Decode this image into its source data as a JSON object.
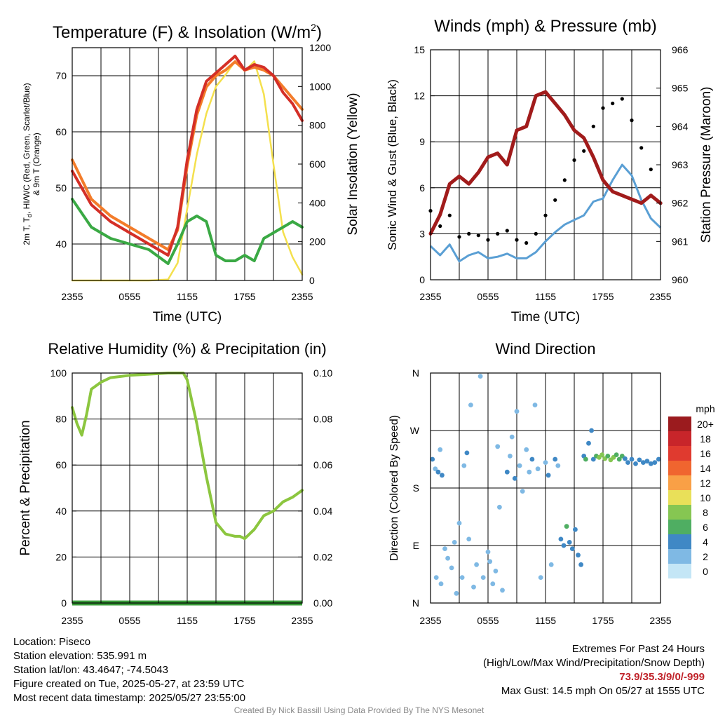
{
  "x_ticks": [
    "2355",
    "0555",
    "1155",
    "1755",
    "2355"
  ],
  "panels": {
    "temp": {
      "title_main": "Temperature (F) & Insolation (W/m",
      "title_sup": "2",
      "title_end": ")",
      "xlabel": "Time (UTC)",
      "ylabel_left_1a": "2m T, T",
      "ylabel_left_1sub": "d",
      "ylabel_left_1b": ", HI/WC (Red, Green, Scarlet/Blue)",
      "ylabel_left_2": "& 9m T (Orange)",
      "ylabel_right": "Solar Insolation (Yellow)",
      "y_left_ticks": [
        "40",
        "50",
        "60",
        "70"
      ],
      "y_right_ticks": [
        "0",
        "200",
        "400",
        "600",
        "800",
        "1000",
        "1200"
      ]
    },
    "wind": {
      "title": "Winds (mph) & Pressure (mb)",
      "xlabel": "Time (UTC)",
      "ylabel_left": "Sonic Wind & Gust (Blue, Black)",
      "ylabel_right": "Station Pressure (Maroon)",
      "y_left_ticks": [
        "0",
        "3",
        "6",
        "9",
        "12",
        "15"
      ],
      "y_right_ticks": [
        "960",
        "961",
        "962",
        "963",
        "964",
        "965",
        "966"
      ]
    },
    "rh": {
      "title": "Relative Humidity (%) & Precipitation (in)",
      "ylabel_left": "Percent & Precipitation",
      "y_left_ticks": [
        "0",
        "20",
        "40",
        "60",
        "80",
        "100"
      ],
      "y_right_ticks": [
        "0.00",
        "0.02",
        "0.04",
        "0.06",
        "0.08",
        "0.10"
      ]
    },
    "wdir": {
      "title": "Wind Direction",
      "ylabel_left": "Direction (Colored By Speed)",
      "y_ticks": [
        "N",
        "E",
        "S",
        "W",
        "N"
      ],
      "colorbar_unit": "mph",
      "colorbar_labels": [
        "20+",
        "18",
        "16",
        "14",
        "12",
        "10",
        "8",
        "6",
        "4",
        "2",
        "0"
      ]
    }
  },
  "colorbar_colors": [
    "#9b1b1e",
    "#c8252a",
    "#e03a2f",
    "#f0652f",
    "#f9a046",
    "#e9e059",
    "#86c652",
    "#4fae62",
    "#3f88c5",
    "#7fb9e4",
    "#c4e6f6"
  ],
  "info": {
    "location": "Location: Piseco",
    "elevation": "Station elevation: 535.991 m",
    "latlon": "Station lat/lon: 43.4647; -74.5043",
    "created": "Figure created on Tue, 2025-05-27, at 23:59 UTC",
    "recent": "Most recent data timestamp: 2025/05/27 23:55:00"
  },
  "extremes": {
    "title": "Extremes For Past 24 Hours",
    "subtitle": "(High/Low/Max Wind/Precipitation/Snow Depth)",
    "values": "73.9/35.3/9/0/-999",
    "gust": "Max Gust: 14.5 mph On 05/27 at 1555 UTC"
  },
  "credit": "Created By Nick Bassill Using Data Provided By The NYS Mesonet",
  "chart_data": [
    {
      "type": "line",
      "title": "Temperature (F) & Insolation (W/m2)",
      "xlabel": "Time (UTC)",
      "x": [
        0,
        2,
        4,
        6,
        8,
        10,
        11,
        12,
        13,
        14,
        15,
        16,
        17,
        18,
        19,
        20,
        21,
        22,
        23,
        24
      ],
      "x_tick_labels": [
        "2355",
        "0555",
        "1155",
        "1755",
        "2355"
      ],
      "ylim_left": [
        33.5,
        75
      ],
      "ylim_right": [
        0,
        1200
      ],
      "series": [
        {
          "name": "2m T (Red)",
          "color": "#d42f27",
          "axis": "left",
          "values": [
            53,
            47,
            44,
            42,
            40,
            38,
            43,
            55,
            64,
            69,
            70.5,
            72,
            73.5,
            71,
            72,
            71.5,
            70,
            67,
            65,
            62
          ]
        },
        {
          "name": "9m T (Orange)",
          "color": "#f37c2a",
          "axis": "left",
          "values": [
            55,
            48,
            45,
            43,
            41,
            39,
            42.5,
            54,
            63,
            68,
            70,
            71,
            72.5,
            71,
            71.5,
            71,
            70,
            68,
            66,
            64
          ]
        },
        {
          "name": "Td (Green)",
          "color": "#3aa944",
          "axis": "left",
          "values": [
            48,
            43,
            41,
            40,
            39,
            36.5,
            40,
            44,
            45,
            44,
            38,
            37,
            37,
            38,
            37,
            41,
            42,
            43,
            44,
            43
          ]
        },
        {
          "name": "Solar Insolation (Yellow)",
          "color": "#f4e04d",
          "axis": "right",
          "values": [
            0,
            0,
            0,
            0,
            0,
            5,
            90,
            370,
            650,
            860,
            1000,
            1060,
            1130,
            1080,
            1130,
            960,
            600,
            250,
            120,
            30
          ]
        }
      ]
    },
    {
      "type": "line",
      "title": "Winds (mph) & Pressure (mb)",
      "xlabel": "Time (UTC)",
      "x": [
        0,
        1,
        2,
        3,
        4,
        5,
        6,
        7,
        8,
        9,
        10,
        11,
        12,
        13,
        14,
        15,
        16,
        17,
        18,
        19,
        20,
        21,
        22,
        23,
        24
      ],
      "ylim_left": [
        0,
        15
      ],
      "ylim_right": [
        960,
        966
      ],
      "series": [
        {
          "name": "Sonic Wind (Blue)",
          "color": "#5a9fd4",
          "axis": "left",
          "values": [
            2.2,
            1.6,
            2.3,
            1.2,
            1.6,
            1.8,
            1.4,
            1.5,
            1.7,
            1.4,
            1.4,
            1.8,
            2.5,
            3.1,
            3.6,
            3.9,
            4.2,
            5.1,
            5.3,
            6.5,
            7.5,
            6.8,
            5.2,
            4.0,
            3.4
          ]
        },
        {
          "name": "Gust (Black)",
          "color": "#000000",
          "axis": "left",
          "values": [
            4.5,
            3.5,
            4.2,
            2.8,
            3.0,
            2.9,
            2.6,
            3.0,
            3.2,
            2.6,
            2.4,
            3.0,
            4.2,
            5.2,
            6.5,
            7.8,
            8.4,
            10.0,
            11.2,
            11.5,
            11.8,
            10.4,
            8.6,
            7.2,
            5.0
          ]
        },
        {
          "name": "Station Pressure (Maroon)",
          "color": "#a11b1b",
          "axis": "right",
          "values": [
            961.2,
            961.7,
            962.5,
            962.7,
            962.5,
            962.8,
            963.2,
            963.3,
            963.0,
            963.9,
            964.0,
            964.8,
            964.9,
            964.6,
            964.3,
            963.9,
            963.7,
            963.2,
            962.6,
            962.3,
            962.2,
            962.1,
            962.0,
            962.2,
            962.0
          ]
        }
      ]
    },
    {
      "type": "line",
      "title": "Relative Humidity (%) & Precipitation (in)",
      "x": [
        0,
        0.5,
        1,
        1.5,
        2,
        3,
        4,
        6,
        8,
        10,
        11,
        11.6,
        12,
        13,
        14,
        15,
        16,
        17,
        17.5,
        18,
        19,
        20,
        21,
        22,
        23,
        24
      ],
      "ylim_left": [
        0,
        100
      ],
      "ylim_right": [
        0,
        0.1
      ],
      "series": [
        {
          "name": "Relative Humidity",
          "color": "#8cc63f",
          "axis": "left",
          "values": [
            85,
            78,
            73,
            82,
            93,
            96,
            98,
            99,
            99.5,
            100,
            100,
            100,
            97,
            78,
            55,
            35,
            30,
            29,
            29,
            28,
            32,
            38,
            40,
            44,
            46,
            49
          ]
        },
        {
          "name": "Precipitation",
          "color": "#3a9b3a",
          "axis": "right",
          "values": [
            0,
            0,
            0,
            0,
            0,
            0,
            0,
            0,
            0,
            0,
            0,
            0,
            0,
            0,
            0,
            0,
            0,
            0,
            0,
            0,
            0,
            0,
            0,
            0,
            0,
            0
          ]
        }
      ]
    },
    {
      "type": "scatter",
      "title": "Wind Direction",
      "xlim": [
        0,
        24
      ],
      "ylim": [
        0,
        360
      ],
      "y_tick_labels": [
        "N",
        "E",
        "S",
        "W",
        "N"
      ],
      "colorbar": {
        "label": "mph",
        "levels": [
          "0",
          "2",
          "4",
          "6",
          "8",
          "10",
          "12",
          "14",
          "16",
          "18",
          "20+"
        ]
      },
      "points": [
        {
          "x": 0.2,
          "y": 225,
          "speed": 3
        },
        {
          "x": 0.5,
          "y": 210,
          "speed": 2
        },
        {
          "x": 0.8,
          "y": 205,
          "speed": 3
        },
        {
          "x": 1.0,
          "y": 240,
          "speed": 2
        },
        {
          "x": 1.2,
          "y": 200,
          "speed": 3
        },
        {
          "x": 0.6,
          "y": 40,
          "speed": 1
        },
        {
          "x": 1.1,
          "y": 30,
          "speed": 1
        },
        {
          "x": 1.5,
          "y": 85,
          "speed": 1
        },
        {
          "x": 1.8,
          "y": 70,
          "speed": 1
        },
        {
          "x": 2.2,
          "y": 55,
          "speed": 2
        },
        {
          "x": 2.5,
          "y": 95,
          "speed": 2
        },
        {
          "x": 2.7,
          "y": 15,
          "speed": 1
        },
        {
          "x": 3.0,
          "y": 125,
          "speed": 2
        },
        {
          "x": 3.3,
          "y": 40,
          "speed": 1
        },
        {
          "x": 3.5,
          "y": 215,
          "speed": 1
        },
        {
          "x": 3.8,
          "y": 235,
          "speed": 3
        },
        {
          "x": 4.0,
          "y": 100,
          "speed": 2
        },
        {
          "x": 4.2,
          "y": 310,
          "speed": 1
        },
        {
          "x": 4.5,
          "y": 25,
          "speed": 1
        },
        {
          "x": 4.8,
          "y": 60,
          "speed": 2
        },
        {
          "x": 5.2,
          "y": 355,
          "speed": 1
        },
        {
          "x": 5.5,
          "y": 40,
          "speed": 2
        },
        {
          "x": 6.0,
          "y": 80,
          "speed": 2
        },
        {
          "x": 6.2,
          "y": 65,
          "speed": 1
        },
        {
          "x": 6.5,
          "y": 30,
          "speed": 2
        },
        {
          "x": 6.8,
          "y": 50,
          "speed": 1
        },
        {
          "x": 7.0,
          "y": 245,
          "speed": 1
        },
        {
          "x": 7.2,
          "y": 150,
          "speed": 2
        },
        {
          "x": 7.5,
          "y": 20,
          "speed": 1
        },
        {
          "x": 8.0,
          "y": 205,
          "speed": 3
        },
        {
          "x": 8.3,
          "y": 230,
          "speed": 2
        },
        {
          "x": 8.5,
          "y": 260,
          "speed": 1
        },
        {
          "x": 8.8,
          "y": 195,
          "speed": 3
        },
        {
          "x": 9.0,
          "y": 300,
          "speed": 2
        },
        {
          "x": 9.3,
          "y": 215,
          "speed": 2
        },
        {
          "x": 9.6,
          "y": 175,
          "speed": 1
        },
        {
          "x": 10.0,
          "y": 240,
          "speed": 1
        },
        {
          "x": 10.3,
          "y": 205,
          "speed": 2
        },
        {
          "x": 10.6,
          "y": 225,
          "speed": 3
        },
        {
          "x": 10.9,
          "y": 310,
          "speed": 1
        },
        {
          "x": 11.2,
          "y": 210,
          "speed": 2
        },
        {
          "x": 11.5,
          "y": 40,
          "speed": 1
        },
        {
          "x": 12.0,
          "y": 220,
          "speed": 2
        },
        {
          "x": 12.3,
          "y": 200,
          "speed": 3
        },
        {
          "x": 12.6,
          "y": 60,
          "speed": 1
        },
        {
          "x": 13.0,
          "y": 225,
          "speed": 3
        },
        {
          "x": 13.3,
          "y": 215,
          "speed": 2
        },
        {
          "x": 13.6,
          "y": 100,
          "speed": 4
        },
        {
          "x": 13.9,
          "y": 90,
          "speed": 3
        },
        {
          "x": 14.2,
          "y": 120,
          "speed": 6
        },
        {
          "x": 14.5,
          "y": 95,
          "speed": 4
        },
        {
          "x": 14.8,
          "y": 85,
          "speed": 3
        },
        {
          "x": 15.1,
          "y": 115,
          "speed": 4
        },
        {
          "x": 15.4,
          "y": 75,
          "speed": 4
        },
        {
          "x": 15.7,
          "y": 60,
          "speed": 3
        },
        {
          "x": 16.0,
          "y": 230,
          "speed": 4
        },
        {
          "x": 16.2,
          "y": 225,
          "speed": 5
        },
        {
          "x": 16.5,
          "y": 250,
          "speed": 4
        },
        {
          "x": 16.8,
          "y": 270,
          "speed": 3
        },
        {
          "x": 17.0,
          "y": 225,
          "speed": 4
        },
        {
          "x": 17.3,
          "y": 230,
          "speed": 6
        },
        {
          "x": 17.6,
          "y": 228,
          "speed": 7
        },
        {
          "x": 17.9,
          "y": 232,
          "speed": 8
        },
        {
          "x": 18.2,
          "y": 226,
          "speed": 7
        },
        {
          "x": 18.5,
          "y": 230,
          "speed": 6
        },
        {
          "x": 18.8,
          "y": 224,
          "speed": 7
        },
        {
          "x": 19.1,
          "y": 228,
          "speed": 8
        },
        {
          "x": 19.4,
          "y": 232,
          "speed": 6
        },
        {
          "x": 19.7,
          "y": 225,
          "speed": 6
        },
        {
          "x": 20.0,
          "y": 230,
          "speed": 5
        },
        {
          "x": 20.3,
          "y": 226,
          "speed": 4
        },
        {
          "x": 20.6,
          "y": 220,
          "speed": 4
        },
        {
          "x": 21.0,
          "y": 225,
          "speed": 4
        },
        {
          "x": 21.4,
          "y": 218,
          "speed": 4
        },
        {
          "x": 21.8,
          "y": 224,
          "speed": 3
        },
        {
          "x": 22.2,
          "y": 220,
          "speed": 4
        },
        {
          "x": 22.6,
          "y": 222,
          "speed": 4
        },
        {
          "x": 23.0,
          "y": 218,
          "speed": 3
        },
        {
          "x": 23.4,
          "y": 220,
          "speed": 4
        },
        {
          "x": 23.8,
          "y": 225,
          "speed": 4
        }
      ]
    }
  ]
}
